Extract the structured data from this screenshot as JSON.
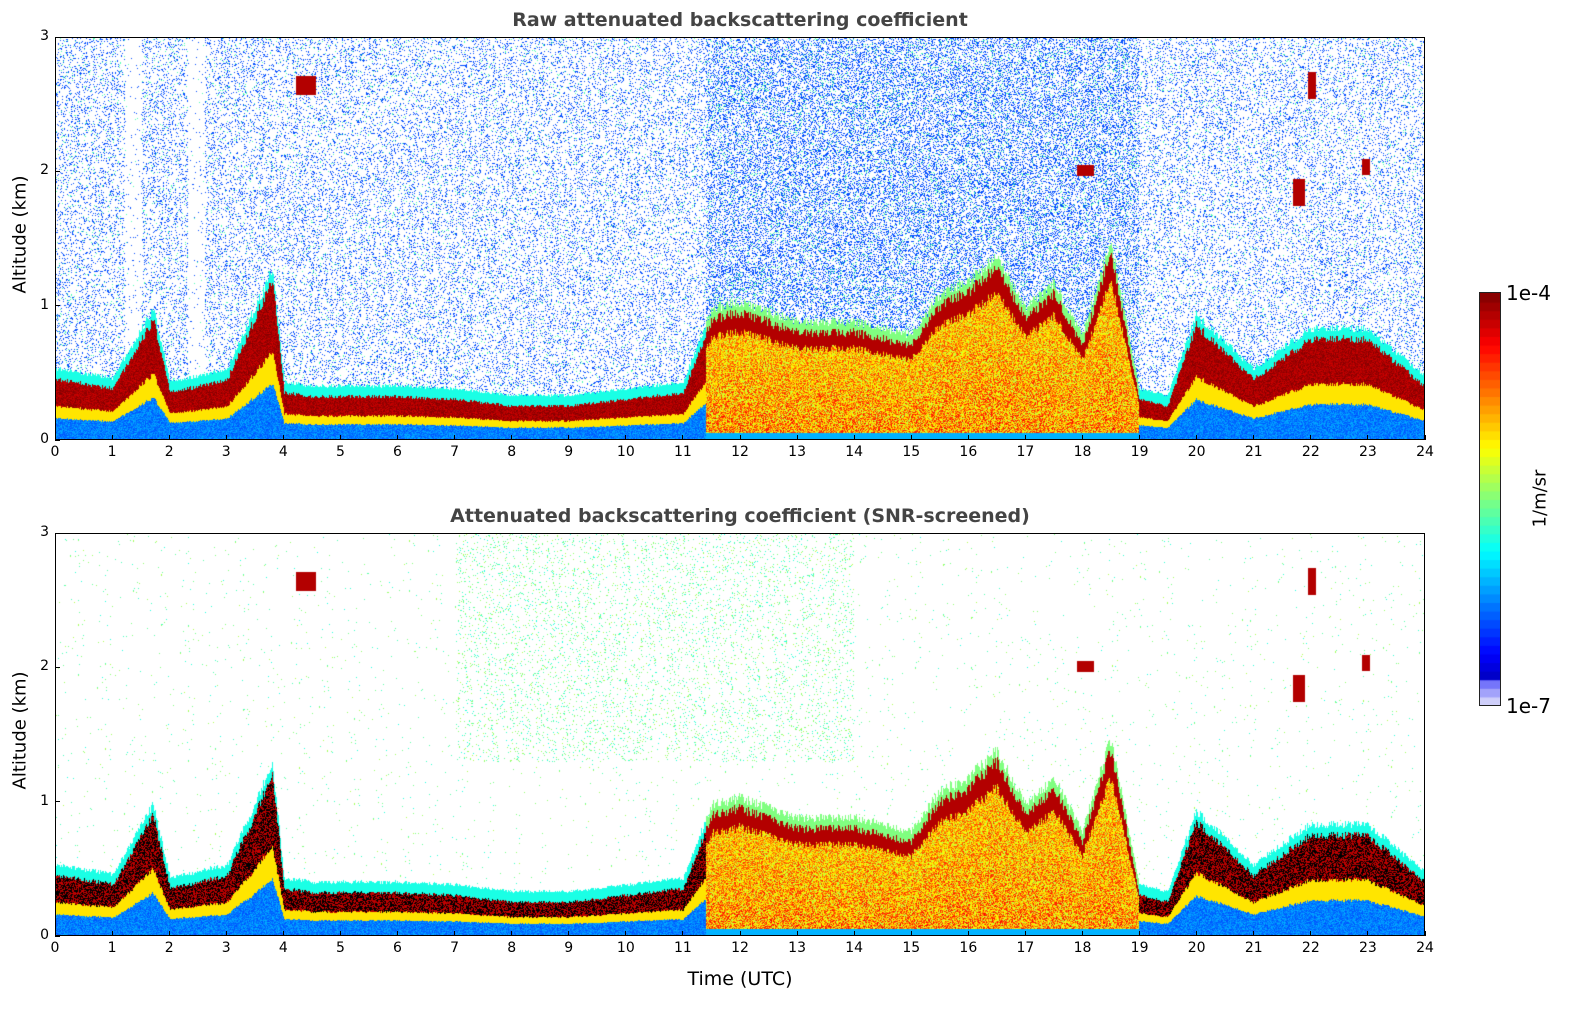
{
  "chart_data": [
    {
      "type": "heatmap",
      "title": "Raw attenuated backscattering coefficient",
      "xlabel": "",
      "ylabel": "Altitude (km)",
      "xlim": [
        0,
        24
      ],
      "ylim": [
        0,
        3
      ],
      "xticks": [
        "0",
        "1",
        "2",
        "3",
        "4",
        "5",
        "6",
        "7",
        "8",
        "9",
        "10",
        "11",
        "12",
        "13",
        "14",
        "15",
        "16",
        "17",
        "18",
        "19",
        "20",
        "21",
        "22",
        "23",
        "24"
      ],
      "yticks": [
        "0",
        "1",
        "2",
        "3"
      ],
      "screened": false
    },
    {
      "type": "heatmap",
      "title": "Attenuated backscattering coefficient (SNR-screened)",
      "xlabel": "Time (UTC)",
      "ylabel": "Altitude (km)",
      "xlim": [
        0,
        24
      ],
      "ylim": [
        0,
        3
      ],
      "xticks": [
        "0",
        "1",
        "2",
        "3",
        "4",
        "5",
        "6",
        "7",
        "8",
        "9",
        "10",
        "11",
        "12",
        "13",
        "14",
        "15",
        "16",
        "17",
        "18",
        "19",
        "20",
        "21",
        "22",
        "23",
        "24"
      ],
      "yticks": [
        "0",
        "1",
        "2",
        "3"
      ],
      "screened": true
    }
  ],
  "layer_top_km": {
    "hours": [
      0,
      1,
      1.7,
      2,
      2.5,
      3,
      3.8,
      4,
      4.5,
      5,
      6,
      7,
      8,
      9,
      10,
      11,
      11.5,
      12,
      13,
      14,
      15,
      15.5,
      16,
      16.5,
      17,
      17.5,
      18,
      18.5,
      19,
      19.5,
      20,
      21,
      22,
      23,
      24
    ],
    "height": [
      0.45,
      0.38,
      0.9,
      0.35,
      0.4,
      0.45,
      1.2,
      0.35,
      0.32,
      0.32,
      0.32,
      0.3,
      0.25,
      0.25,
      0.3,
      0.35,
      0.9,
      0.95,
      0.8,
      0.8,
      0.7,
      1.0,
      1.1,
      1.3,
      0.9,
      1.1,
      0.7,
      1.4,
      0.3,
      0.25,
      0.85,
      0.45,
      0.75,
      0.75,
      0.4
    ]
  },
  "elevated_layers_km": [
    {
      "t": [
        4.2,
        4.55
      ],
      "alt": [
        2.58,
        2.72
      ]
    },
    {
      "t": [
        17.9,
        18.2
      ],
      "alt": [
        1.97,
        2.05
      ]
    },
    {
      "t": [
        21.7,
        21.9
      ],
      "alt": [
        1.75,
        1.95
      ]
    },
    {
      "t": [
        21.95,
        22.1
      ],
      "alt": [
        2.55,
        2.75
      ]
    },
    {
      "t": [
        22.9,
        23.05
      ],
      "alt": [
        1.98,
        2.1
      ]
    }
  ],
  "colorbar": {
    "label": "1/m/sr",
    "min_label": "1e-7",
    "max_label": "1e-4",
    "min": 1e-07,
    "max": 0.0001,
    "scale": "log",
    "colormap": "jet"
  }
}
